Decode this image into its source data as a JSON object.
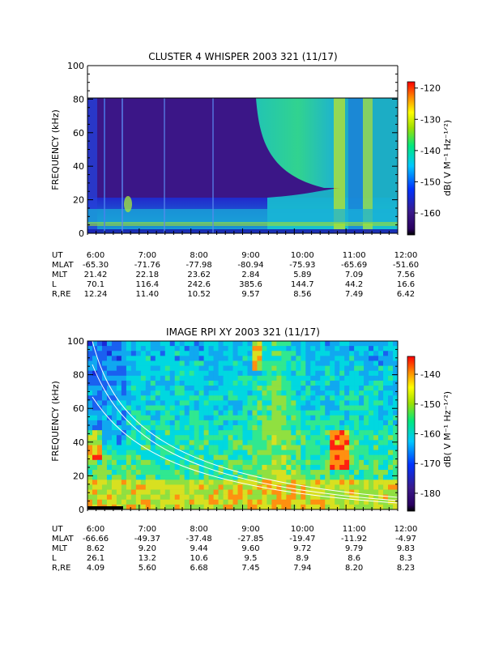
{
  "chart_data": [
    {
      "type": "heatmap",
      "title": "CLUSTER 4 WHISPER 2003 321 (11/17)",
      "ylabel": "FREQUENCY (kHz)",
      "ylim": [
        0,
        100
      ],
      "yticks": [
        "0",
        "20",
        "40",
        "60",
        "80",
        "100"
      ],
      "xticks": [
        "6:00",
        "7:00",
        "8:00",
        "9:00",
        "10:00",
        "11:00",
        "12:00"
      ],
      "colorbar": {
        "label": "dB( V M⁻¹ Hz⁻¹ᐟ²)",
        "ticks": [
          "-120",
          "-130",
          "-140",
          "-150",
          "-160"
        ],
        "range": [
          -167,
          -118
        ]
      },
      "ephemeris": {
        "row_labels": [
          "UT",
          "MLAT",
          "MLT",
          "L",
          "R,RE"
        ],
        "columns": [
          [
            "6:00",
            "-65.30",
            "21.42",
            "70.1",
            "12.24"
          ],
          [
            "7:00",
            "-71.76",
            "22.18",
            "116.4",
            "11.40"
          ],
          [
            "8:00",
            "-77.98",
            "23.62",
            "242.6",
            "10.52"
          ],
          [
            "9:00",
            "-80.94",
            "2.84",
            "385.6",
            "9.57"
          ],
          [
            "10:00",
            "-75.93",
            "5.89",
            "144.7",
            "8.56"
          ],
          [
            "11:00",
            "-65.69",
            "7.09",
            "44.2",
            "7.49"
          ],
          [
            "12:00",
            "-51.60",
            "7.56",
            "16.6",
            "6.42"
          ]
        ]
      }
    },
    {
      "type": "heatmap",
      "title": "IMAGE RPI XY 2003 321 (11/17)",
      "ylabel": "FREQUENCY (kHz)",
      "ylim": [
        0,
        100
      ],
      "yticks": [
        "0",
        "20",
        "40",
        "60",
        "80",
        "100"
      ],
      "xticks": [
        "6:00",
        "7:00",
        "8:00",
        "9:00",
        "10:00",
        "11:00",
        "12:00"
      ],
      "colorbar": {
        "label": "dB( V M⁻¹ Hz⁻¹ᐟ²)",
        "ticks": [
          "-140",
          "-150",
          "-160",
          "-170",
          "-180"
        ],
        "range": [
          -186,
          -134
        ]
      },
      "ephemeris": {
        "row_labels": [
          "UT",
          "MLAT",
          "MLT",
          "L",
          "R,RE"
        ],
        "columns": [
          [
            "6:00",
            "-66.66",
            "8.62",
            "26.1",
            "4.09"
          ],
          [
            "7:00",
            "-49.37",
            "9.20",
            "13.2",
            "5.60"
          ],
          [
            "8:00",
            "-37.48",
            "9.44",
            "10.6",
            "6.68"
          ],
          [
            "9:00",
            "-27.85",
            "9.60",
            "9.5",
            "7.45"
          ],
          [
            "10:00",
            "-19.47",
            "9.72",
            "8.9",
            "7.94"
          ],
          [
            "11:00",
            "-11.92",
            "9.79",
            "8.6",
            "8.20"
          ],
          [
            "12:00",
            "-4.97",
            "9.83",
            "8.3",
            "8.23"
          ]
        ]
      }
    }
  ]
}
